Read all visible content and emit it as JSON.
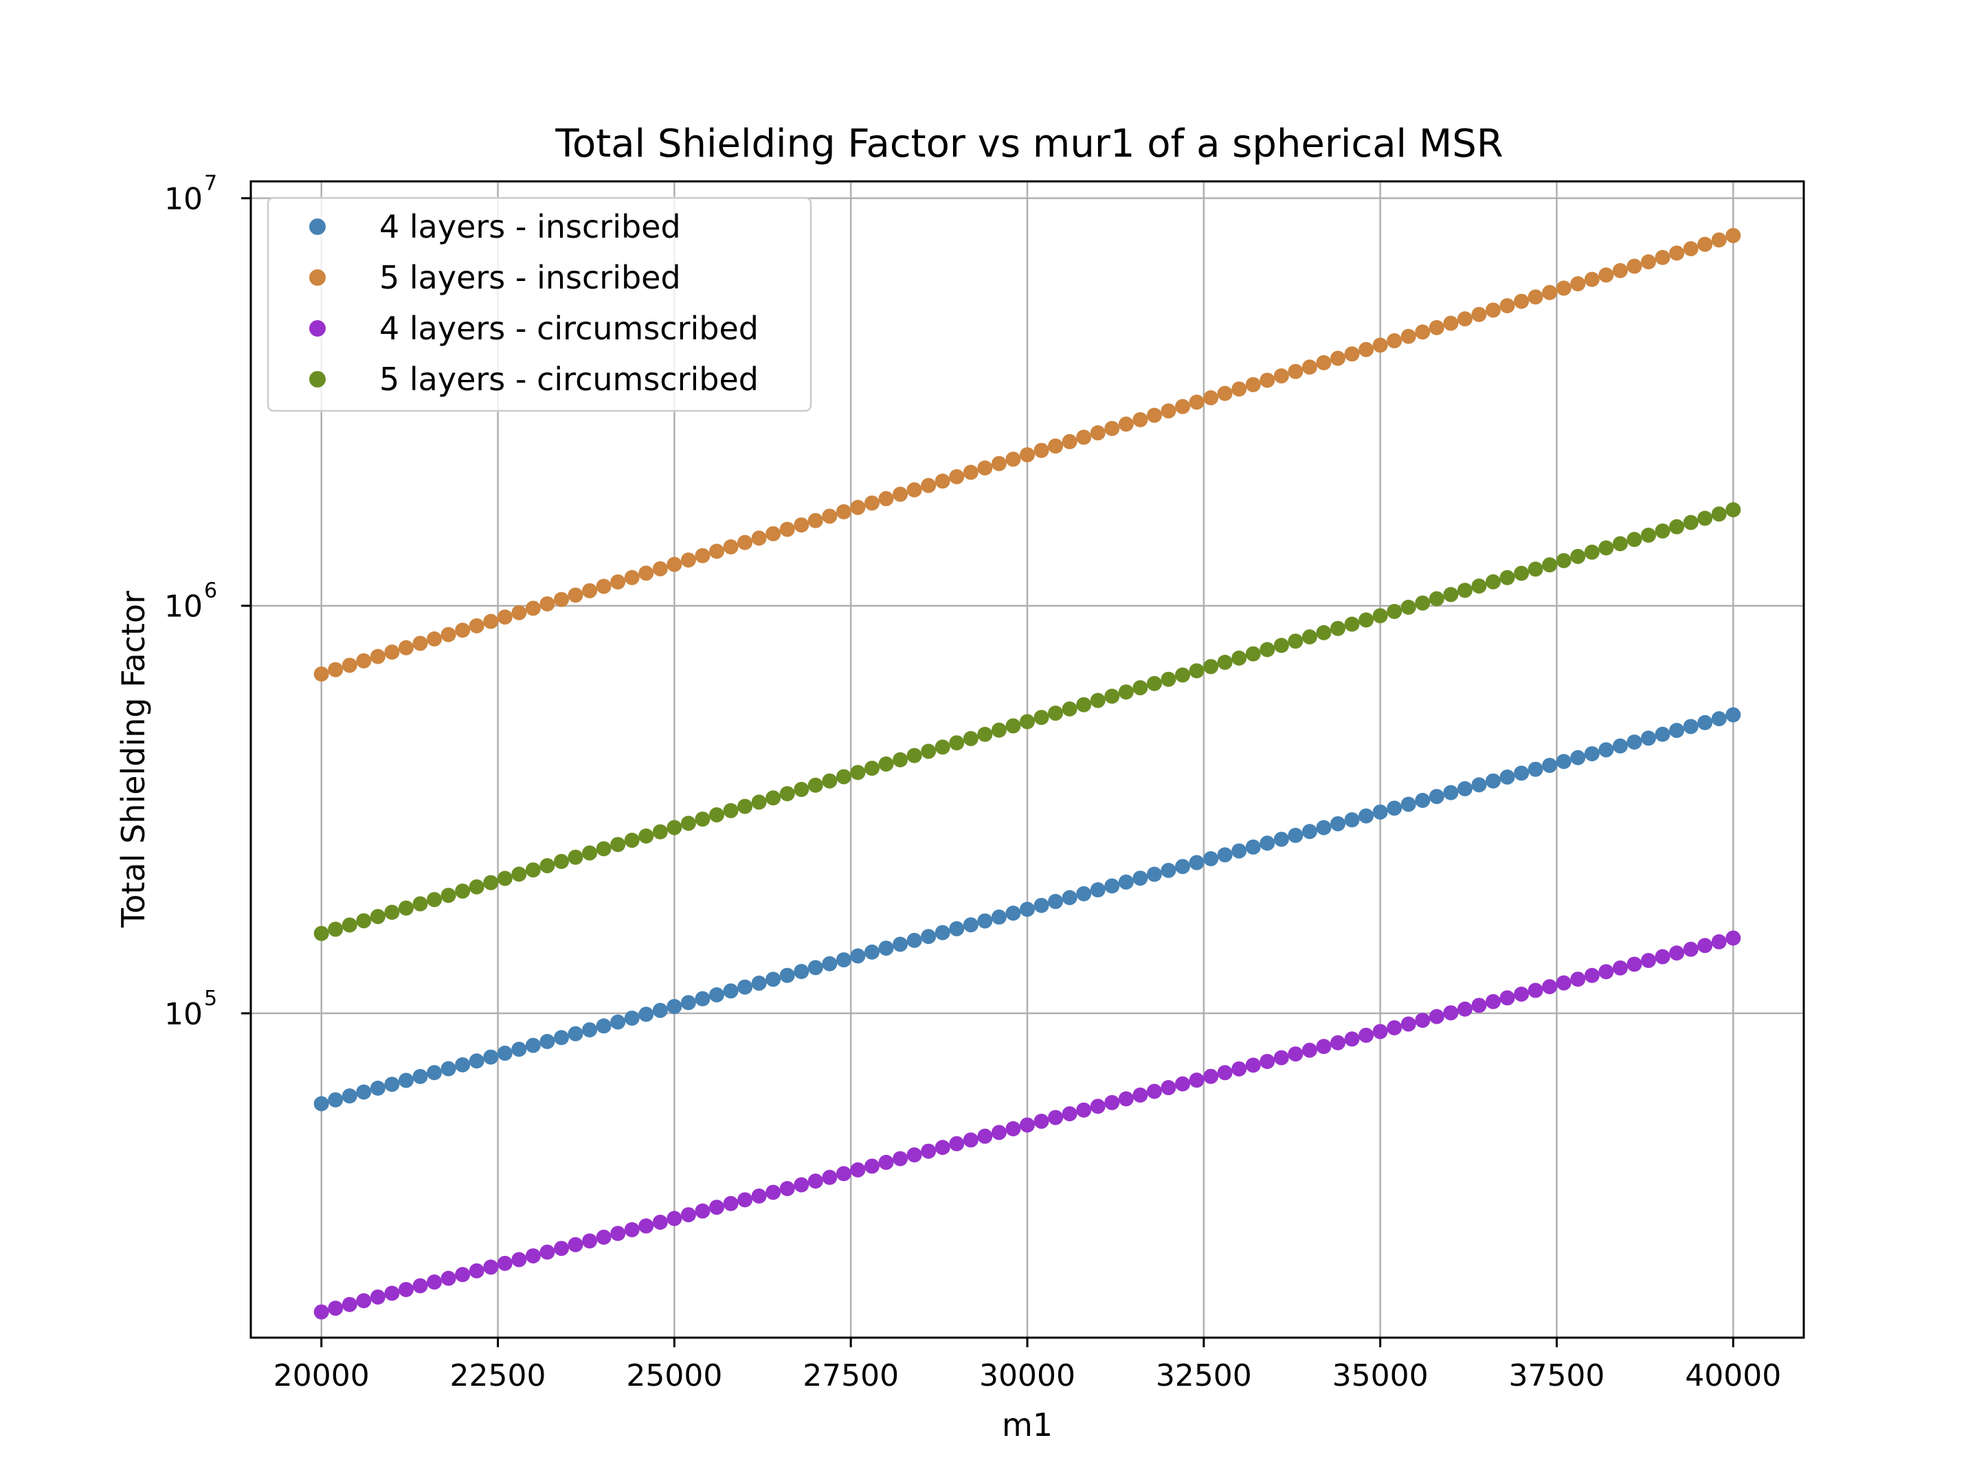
{
  "chart_data": {
    "type": "scatter",
    "title": "Total Shielding Factor vs mur1 of a spherical MSR",
    "xlabel": "m1",
    "ylabel": "Total Shielding Factor",
    "xlim": [
      19000,
      41000
    ],
    "ylim": [
      16000,
      11000000
    ],
    "yscale": "log",
    "grid": true,
    "legend_position": "upper left",
    "x_ticks": [
      20000,
      22500,
      25000,
      27500,
      30000,
      32500,
      35000,
      37500,
      40000
    ],
    "x_tick_labels": [
      "20000",
      "22500",
      "25000",
      "27500",
      "30000",
      "32500",
      "35000",
      "37500",
      "40000"
    ],
    "y_ticks": [
      {
        "value": 100000,
        "base": "10",
        "exp": "5"
      },
      {
        "value": 1000000,
        "base": "10",
        "exp": "6"
      },
      {
        "value": 10000000,
        "base": "10",
        "exp": "7"
      }
    ],
    "x_start": 20000,
    "x_end": 40000,
    "n_points": 101,
    "series": [
      {
        "name": "4 layers - inscribed",
        "color": "#4682b4",
        "y_start": 60000,
        "y_end": 540000
      },
      {
        "name": "5 layers - inscribed",
        "color": "#cd853f",
        "y_start": 680000,
        "y_end": 8100000
      },
      {
        "name": "4 layers - circumscribed",
        "color": "#9932cc",
        "y_start": 18500,
        "y_end": 153000
      },
      {
        "name": "5 layers - circumscribed",
        "color": "#6b8e23",
        "y_start": 157000,
        "y_end": 1720000
      }
    ]
  }
}
